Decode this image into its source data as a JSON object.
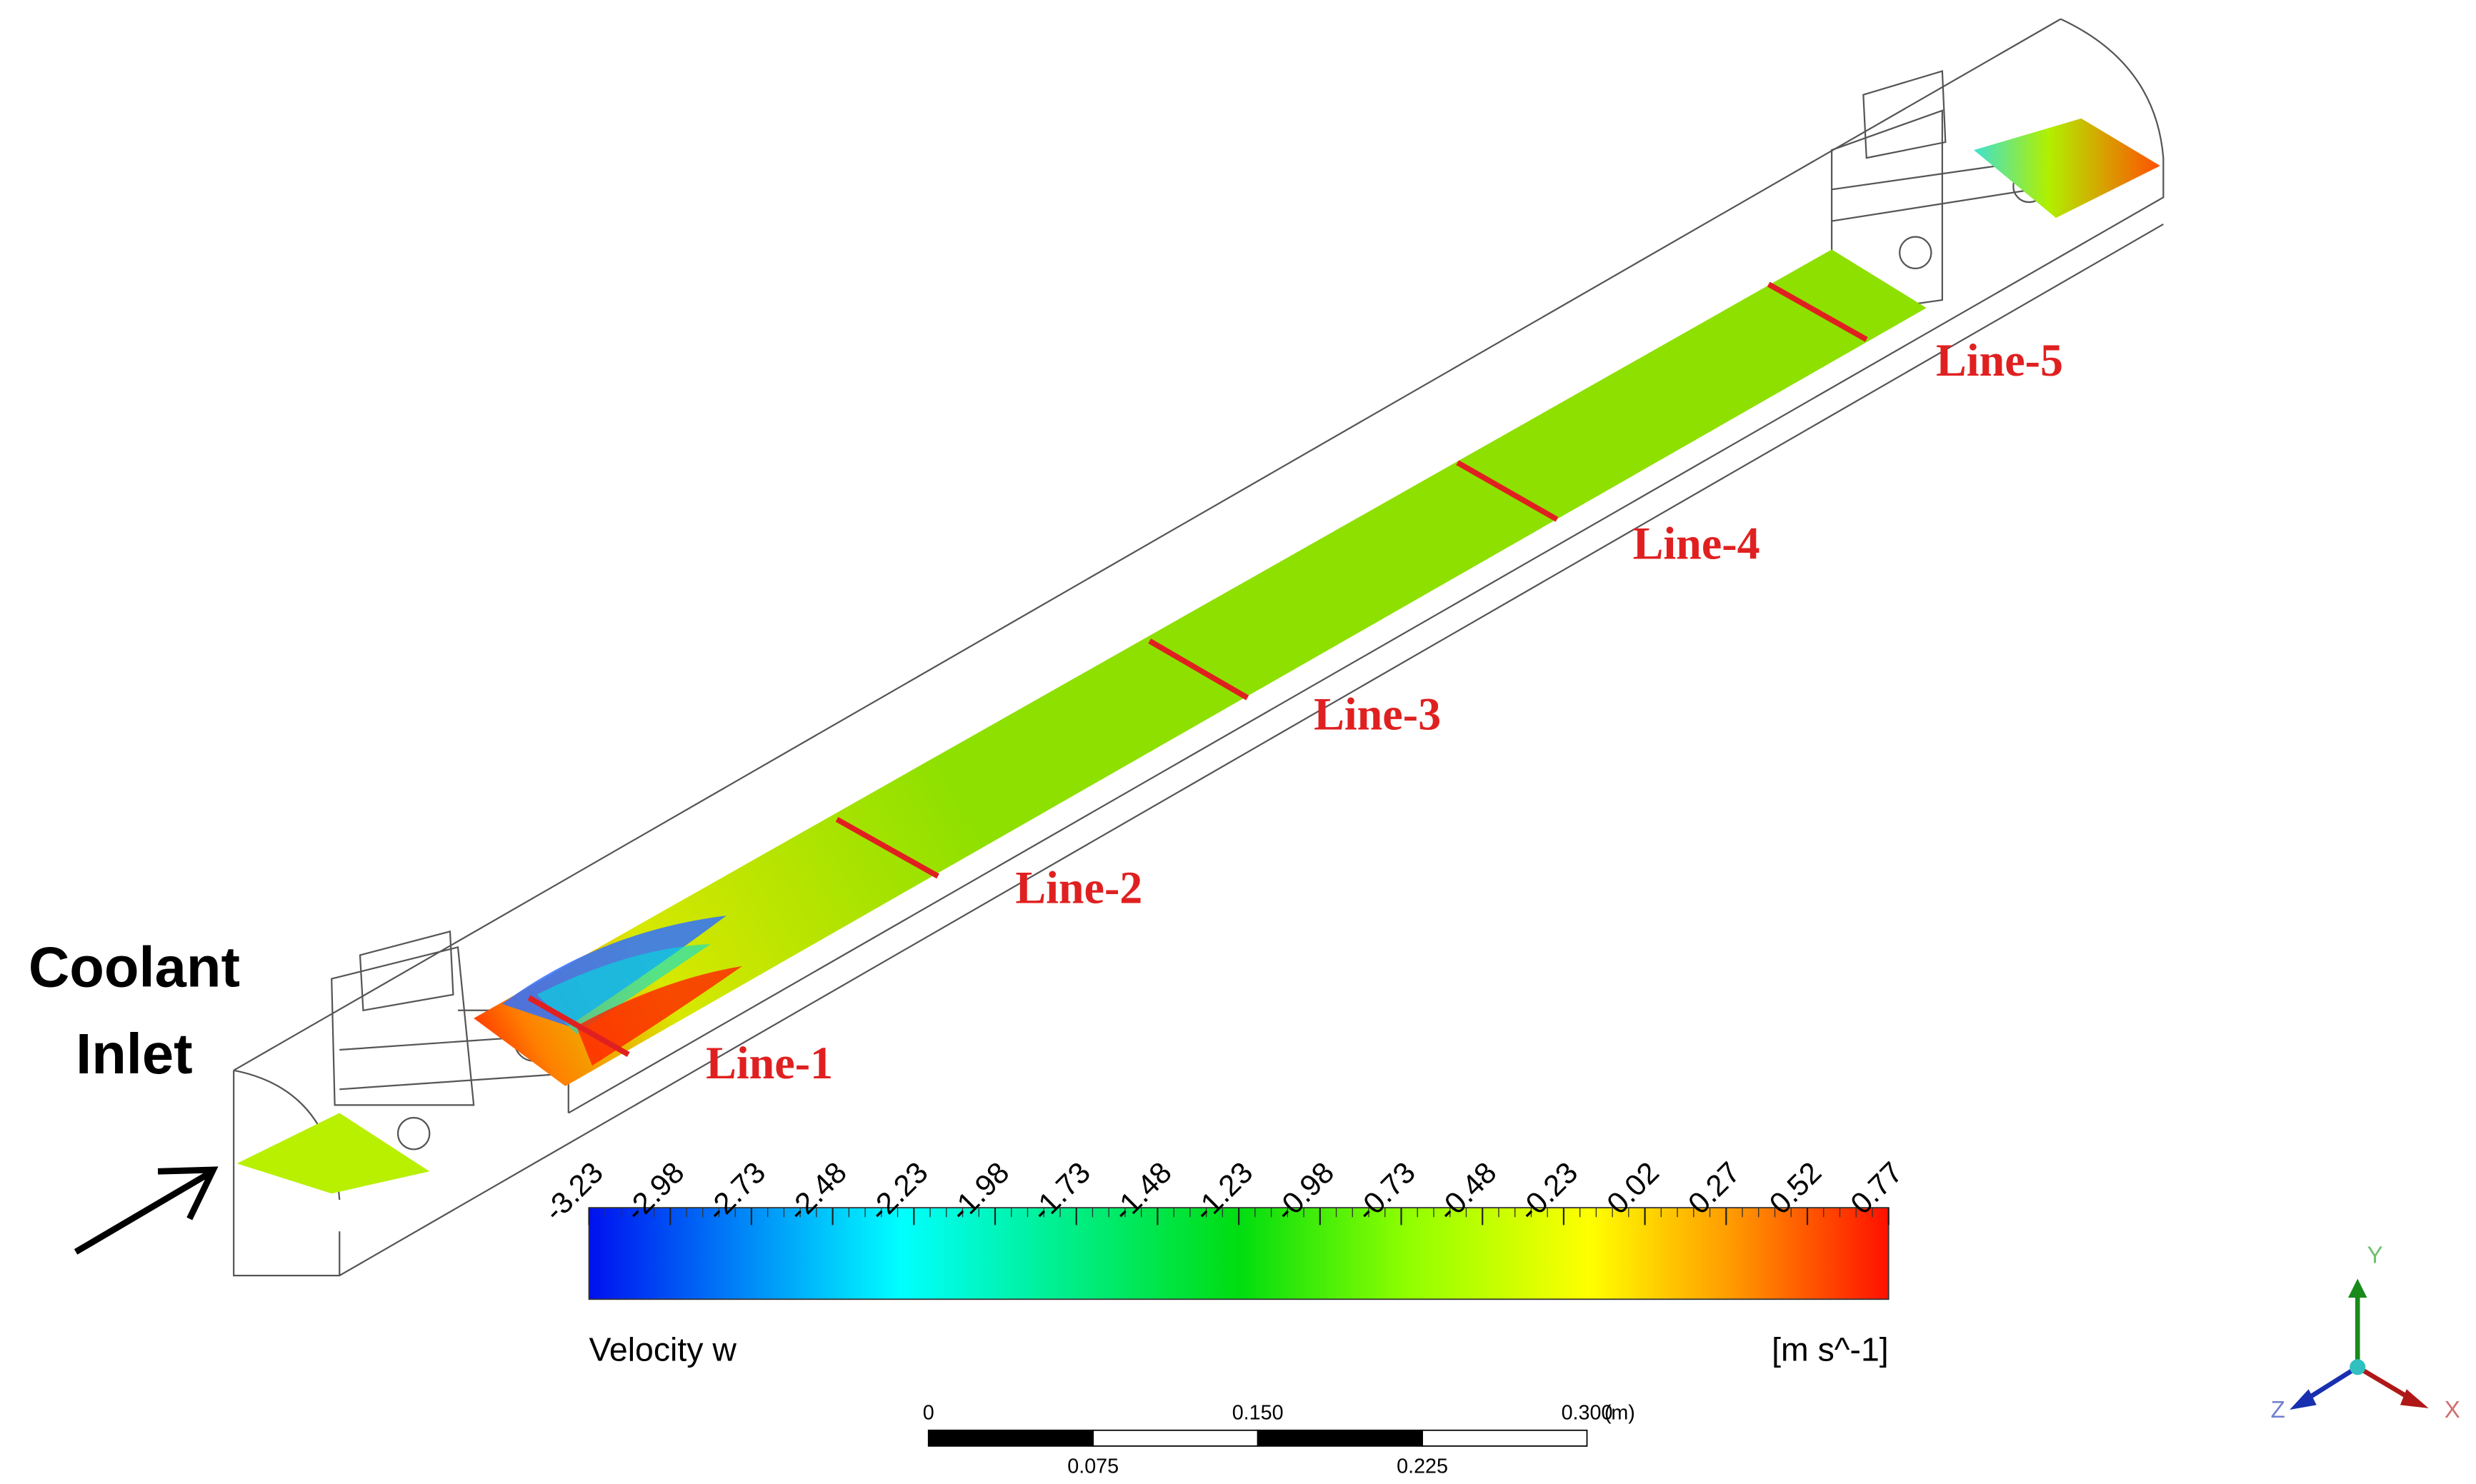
{
  "annotation": {
    "line1": "Coolant",
    "line2": "Inlet"
  },
  "lines": [
    "Line-1",
    "Line-2",
    "Line-3",
    "Line-4",
    "Line-5"
  ],
  "colorbar": {
    "title": "Velocity w",
    "units": "[m s^-1]",
    "range": [
      -3.23,
      0.77
    ],
    "ticks": [
      -3.23,
      -2.98,
      -2.73,
      -2.48,
      -2.23,
      -1.98,
      -1.73,
      -1.48,
      -1.23,
      -0.98,
      -0.73,
      -0.48,
      -0.23,
      0.02,
      0.27,
      0.52,
      0.77
    ]
  },
  "scale_bar": {
    "unit": "(m)",
    "range": [
      0,
      0.3
    ],
    "ticks_top": [
      0,
      {
        "value": 0.15,
        "label": "0.150"
      },
      {
        "value": 0.3,
        "label": "0.300"
      }
    ],
    "ticks_bottom": [
      {
        "value": 0.075,
        "label": "0.075"
      },
      {
        "value": 0.225,
        "label": "0.225"
      }
    ]
  },
  "axes": {
    "x": "X",
    "y": "Y",
    "z": "Z"
  }
}
